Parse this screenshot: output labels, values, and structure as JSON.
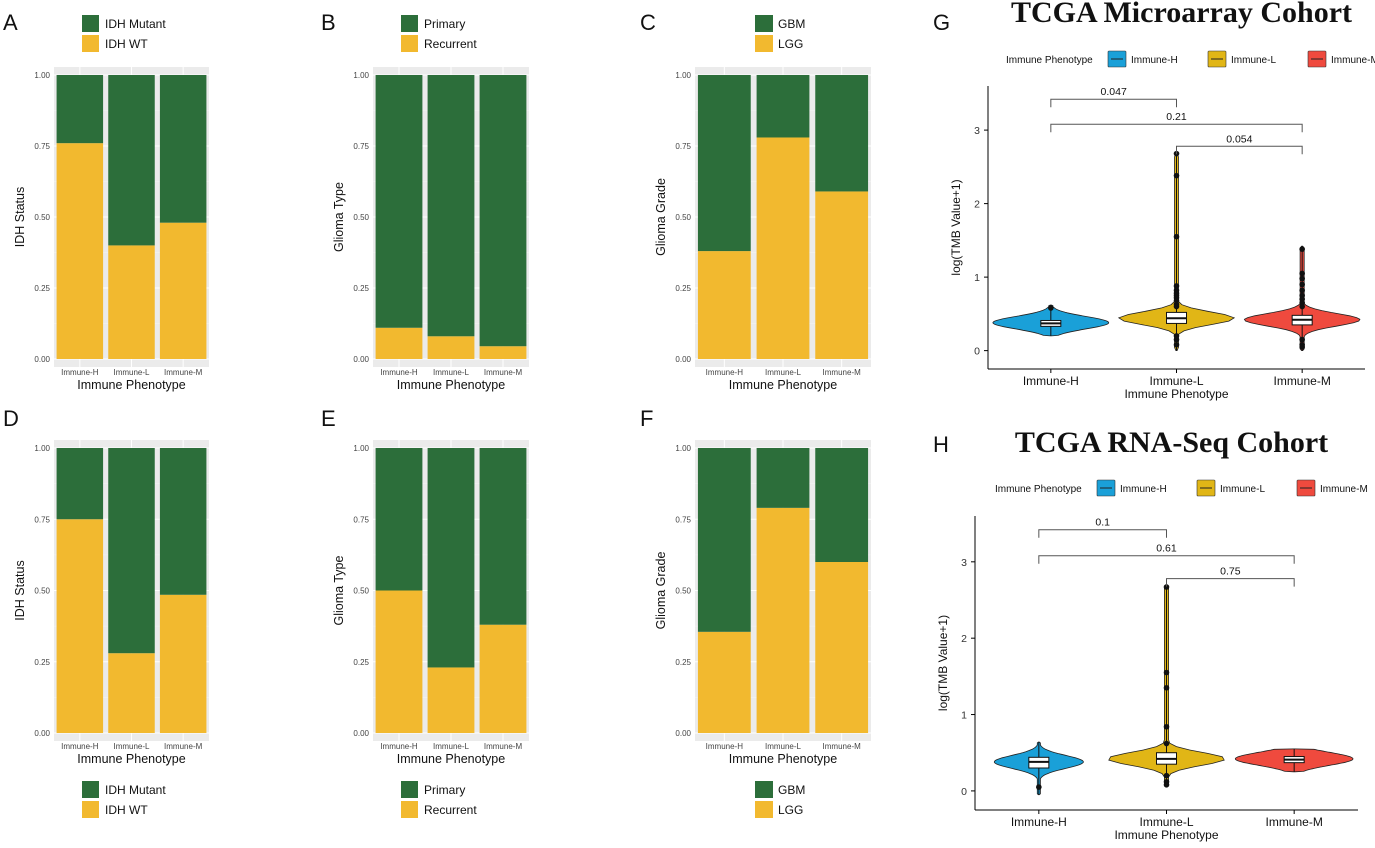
{
  "colors": {
    "green": "#2c6e3a",
    "yellow": "#f2b92f",
    "panel_bg": "#ebebeb",
    "immune_h": "#1aa0d8",
    "immune_l": "#e1b616",
    "immune_m": "#ef4a3e"
  },
  "chart_data": [
    {
      "id": "A",
      "type": "bar",
      "stacked": true,
      "categories": [
        "Immune-H",
        "Immune-L",
        "Immune-M"
      ],
      "series": [
        {
          "name": "IDH Mutant",
          "color_key": "green",
          "values": [
            0.24,
            0.6,
            0.52
          ]
        },
        {
          "name": "IDH WT",
          "color_key": "yellow",
          "values": [
            0.76,
            0.4,
            0.48
          ]
        }
      ],
      "title": "",
      "xlabel": "Immune Phenotype",
      "ylabel": "IDH Status",
      "ylim": [
        0,
        1
      ],
      "yticks": [
        "0.00",
        "0.25",
        "0.50",
        "0.75",
        "1.00"
      ],
      "legend_position": "top"
    },
    {
      "id": "B",
      "type": "bar",
      "stacked": true,
      "categories": [
        "Immune-H",
        "Immune-L",
        "Immune-M"
      ],
      "series": [
        {
          "name": "Primary",
          "color_key": "green",
          "values": [
            0.89,
            0.92,
            0.955
          ]
        },
        {
          "name": "Recurrent",
          "color_key": "yellow",
          "values": [
            0.11,
            0.08,
            0.045
          ]
        }
      ],
      "title": "",
      "xlabel": "Immune Phenotype",
      "ylabel": "Glioma Type",
      "ylim": [
        0,
        1
      ],
      "yticks": [
        "0.00",
        "0.25",
        "0.50",
        "0.75",
        "1.00"
      ],
      "legend_position": "top"
    },
    {
      "id": "C",
      "type": "bar",
      "stacked": true,
      "categories": [
        "Immune-H",
        "Immune-L",
        "Immune-M"
      ],
      "series": [
        {
          "name": "GBM",
          "color_key": "green",
          "values": [
            0.62,
            0.22,
            0.41
          ]
        },
        {
          "name": "LGG",
          "color_key": "yellow",
          "values": [
            0.38,
            0.78,
            0.59
          ]
        }
      ],
      "title": "",
      "xlabel": "Immune Phenotype",
      "ylabel": "Glioma Grade",
      "ylim": [
        0,
        1
      ],
      "yticks": [
        "0.00",
        "0.25",
        "0.50",
        "0.75",
        "1.00"
      ],
      "legend_position": "top"
    },
    {
      "id": "D",
      "type": "bar",
      "stacked": true,
      "categories": [
        "Immune-H",
        "Immune-L",
        "Immune-M"
      ],
      "series": [
        {
          "name": "IDH Mutant",
          "color_key": "green",
          "values": [
            0.25,
            0.72,
            0.515
          ]
        },
        {
          "name": "IDH WT",
          "color_key": "yellow",
          "values": [
            0.75,
            0.28,
            0.485
          ]
        }
      ],
      "title": "",
      "xlabel": "Immune Phenotype",
      "ylabel": "IDH Status",
      "ylim": [
        0,
        1
      ],
      "yticks": [
        "0.00",
        "0.25",
        "0.50",
        "0.75",
        "1.00"
      ],
      "legend_position": "bottom"
    },
    {
      "id": "E",
      "type": "bar",
      "stacked": true,
      "categories": [
        "Immune-H",
        "Immune-L",
        "Immune-M"
      ],
      "series": [
        {
          "name": "Primary",
          "color_key": "green",
          "values": [
            0.5,
            0.77,
            0.62
          ]
        },
        {
          "name": "Recurrent",
          "color_key": "yellow",
          "values": [
            0.5,
            0.23,
            0.38
          ]
        }
      ],
      "title": "",
      "xlabel": "Immune Phenotype",
      "ylabel": "Glioma Type",
      "ylim": [
        0,
        1
      ],
      "yticks": [
        "0.00",
        "0.25",
        "0.50",
        "0.75",
        "1.00"
      ],
      "legend_position": "bottom"
    },
    {
      "id": "F",
      "type": "bar",
      "stacked": true,
      "categories": [
        "Immune-H",
        "Immune-L",
        "Immune-M"
      ],
      "series": [
        {
          "name": "GBM",
          "color_key": "green",
          "values": [
            0.645,
            0.21,
            0.4
          ]
        },
        {
          "name": "LGG",
          "color_key": "yellow",
          "values": [
            0.355,
            0.79,
            0.6
          ]
        }
      ],
      "title": "",
      "xlabel": "Immune Phenotype",
      "ylabel": "Glioma Grade",
      "ylim": [
        0,
        1
      ],
      "yticks": [
        "0.00",
        "0.25",
        "0.50",
        "0.75",
        "1.00"
      ],
      "legend_position": "bottom"
    },
    {
      "id": "G",
      "type": "violin",
      "title": "TCGA Microarray Cohort",
      "legend_title": "Immune Phenotype",
      "categories": [
        "Immune-H",
        "Immune-L",
        "Immune-M"
      ],
      "xlabel": "Immune Phenotype",
      "ylabel": "log(TMB Value+1)",
      "ylim": [
        -0.25,
        3.6
      ],
      "yticks": [
        0,
        1,
        2,
        3
      ],
      "groups": [
        {
          "name": "Immune-H",
          "color_key": "immune_h",
          "min": 0.2,
          "max": 0.62,
          "median": 0.37,
          "q1": 0.33,
          "q3": 0.41,
          "peak": 0.38,
          "width": 0.95,
          "outliers": [
            0.58
          ]
        },
        {
          "name": "Immune-L",
          "color_key": "immune_l",
          "min": 0.0,
          "max": 2.68,
          "median": 0.44,
          "q1": 0.37,
          "q3": 0.52,
          "peak": 0.44,
          "width": 0.95,
          "outliers": [
            2.68,
            2.38,
            1.55,
            0.88,
            0.82,
            0.78,
            0.75,
            0.72,
            0.68,
            0.63,
            0.6,
            0.2,
            0.15,
            0.08
          ]
        },
        {
          "name": "Immune-M",
          "color_key": "immune_m",
          "min": 0.0,
          "max": 1.42,
          "median": 0.42,
          "q1": 0.35,
          "q3": 0.48,
          "peak": 0.42,
          "width": 0.95,
          "outliers": [
            1.38,
            1.05,
            0.98,
            0.9,
            0.82,
            0.75,
            0.7,
            0.65,
            0.6,
            0.15,
            0.08,
            0.05
          ]
        }
      ],
      "comparisons": [
        {
          "a": 1,
          "b": 2,
          "label": "0.054",
          "level": 2
        },
        {
          "a": 0,
          "b": 2,
          "label": "0.21",
          "level": 1
        },
        {
          "a": 0,
          "b": 1,
          "label": "0.047",
          "level": 0
        }
      ],
      "bracket_levels": [
        3.42,
        3.08,
        2.78
      ]
    },
    {
      "id": "H",
      "type": "violin",
      "title": "TCGA RNA-Seq Cohort",
      "legend_title": "Immune Phenotype",
      "categories": [
        "Immune-H",
        "Immune-L",
        "Immune-M"
      ],
      "xlabel": "Immune Phenotype",
      "ylabel": "log(TMB Value+1)",
      "ylim": [
        -0.25,
        3.6
      ],
      "yticks": [
        0,
        1,
        2,
        3
      ],
      "groups": [
        {
          "name": "Immune-H",
          "color_key": "immune_h",
          "min": -0.05,
          "max": 0.64,
          "median": 0.38,
          "q1": 0.3,
          "q3": 0.44,
          "peak": 0.38,
          "width": 0.72,
          "outliers": [
            0.05
          ]
        },
        {
          "name": "Immune-L",
          "color_key": "immune_l",
          "min": 0.05,
          "max": 2.7,
          "median": 0.42,
          "q1": 0.35,
          "q3": 0.5,
          "peak": 0.42,
          "width": 0.95,
          "outliers": [
            2.67,
            1.55,
            1.35,
            0.84,
            0.62,
            0.2,
            0.12,
            0.08
          ]
        },
        {
          "name": "Immune-M",
          "color_key": "immune_m",
          "min": 0.25,
          "max": 0.55,
          "median": 0.41,
          "q1": 0.37,
          "q3": 0.45,
          "peak": 0.42,
          "width": 0.95,
          "outliers": []
        }
      ],
      "comparisons": [
        {
          "a": 1,
          "b": 2,
          "label": "0.75",
          "level": 2
        },
        {
          "a": 0,
          "b": 2,
          "label": "0.61",
          "level": 1
        },
        {
          "a": 0,
          "b": 1,
          "label": "0.1",
          "level": 0
        }
      ],
      "bracket_levels": [
        3.42,
        3.08,
        2.78
      ]
    }
  ]
}
